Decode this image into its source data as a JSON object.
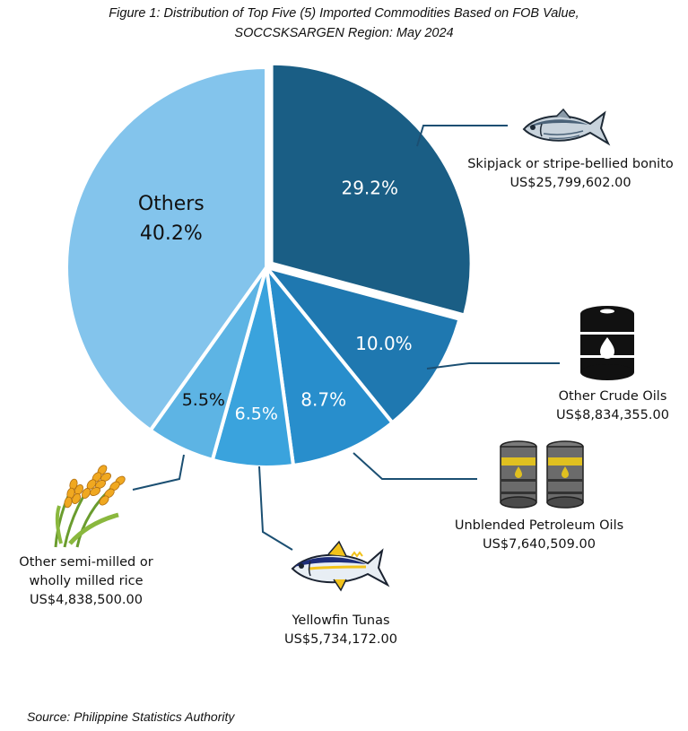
{
  "header": {
    "title_line1": "Figure 1: Distribution of Top Five (5) Imported Commodities Based on FOB Value,",
    "title_line2": "SOCCSKSARGEN Region: May 2024"
  },
  "footer": {
    "source": "Source: Philippine Statistics Authority"
  },
  "chart_data": {
    "type": "pie",
    "title": "Figure 1: Distribution of Top Five (5) Imported Commodities Based on FOB Value, SOCCSKSARGEN Region: May 2024",
    "slices": [
      {
        "name": "Skipjack or stripe-bellied bonito",
        "value": 29.2,
        "label": "29.2%",
        "fob": "US$25,799,602.00",
        "color": "#1a5e85",
        "icon": "skipjack-fish-icon"
      },
      {
        "name": "Other Crude Oils",
        "value": 10.0,
        "label": "10.0%",
        "fob": "US$8,834,355.00",
        "color": "#1f78b0",
        "icon": "oil-barrel-icon"
      },
      {
        "name": "Unblended Petroleum Oils",
        "value": 8.7,
        "label": "8.7%",
        "fob": "US$7,640,509.00",
        "color": "#288ecc",
        "icon": "petroleum-barrels-icon"
      },
      {
        "name": "Yellowfin Tunas",
        "value": 6.5,
        "label": "6.5%",
        "fob": "US$5,734,172.00",
        "color": "#3aa3dd",
        "icon": "tuna-fish-icon"
      },
      {
        "name": "Other semi-milled or wholly milled rice",
        "value": 5.5,
        "label": "5.5%",
        "fob": "US$4,838,500.00",
        "color": "#5db4e4",
        "icon": "rice-stalk-icon"
      },
      {
        "name": "Others",
        "value": 40.2,
        "label": "40.2%",
        "color": "#83c4ec"
      }
    ]
  },
  "callouts": {
    "skipjack": {
      "name": "Skipjack or stripe-bellied bonito",
      "value": "US$25,799,602.00"
    },
    "crude": {
      "name": "Other Crude Oils",
      "value": "US$8,834,355.00"
    },
    "petroleum": {
      "name": "Unblended Petroleum Oils",
      "value": "US$7,640,509.00"
    },
    "yellowfin": {
      "name": "Yellowfin Tunas",
      "value": "US$5,734,172.00"
    },
    "rice": {
      "name_line1": "Other semi-milled or",
      "name_line2": "wholly milled rice",
      "value": "US$4,838,500.00"
    }
  }
}
